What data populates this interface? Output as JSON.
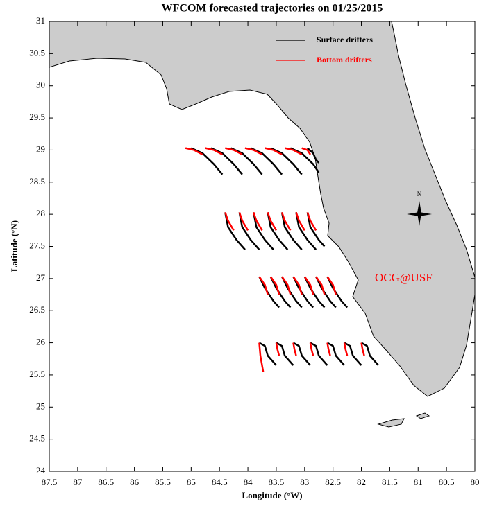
{
  "chart_data": {
    "type": "trajectory",
    "title": "WFCOM forecasted trajectories on 01/25/2015",
    "x_label": "Longitude (°W)",
    "y_label": "Latitude (°N)",
    "annotation": "OCG@USF",
    "compass_label": "N",
    "xlim": [
      87.5,
      80
    ],
    "ylim": [
      24,
      31
    ],
    "xticks": [
      87.5,
      87,
      86.5,
      86,
      85.5,
      85,
      84.5,
      84,
      83.5,
      83,
      82.5,
      82,
      81.5,
      81,
      80.5,
      80
    ],
    "yticks": [
      24,
      24.5,
      25,
      25.5,
      26,
      26.5,
      27,
      27.5,
      28,
      28.5,
      29,
      29.5,
      30,
      30.5,
      31
    ],
    "grid": false,
    "legend": "upper right",
    "series": [
      {
        "name": "Surface drifters",
        "color": "#000000",
        "tracks": [
          {
            "x": [
              85.0,
              84.8,
              84.6,
              84.45
            ],
            "y": [
              29.03,
              28.95,
              28.78,
              28.62
            ]
          },
          {
            "x": [
              84.65,
              84.45,
              84.25,
              84.1
            ],
            "y": [
              29.03,
              28.95,
              28.78,
              28.62
            ]
          },
          {
            "x": [
              84.3,
              84.1,
              83.9,
              83.75
            ],
            "y": [
              29.03,
              28.95,
              28.78,
              28.62
            ]
          },
          {
            "x": [
              83.95,
              83.75,
              83.55,
              83.4
            ],
            "y": [
              29.03,
              28.95,
              28.78,
              28.62
            ]
          },
          {
            "x": [
              83.6,
              83.4,
              83.2,
              83.05
            ],
            "y": [
              29.03,
              28.95,
              28.78,
              28.62
            ]
          },
          {
            "x": [
              83.25,
              83.05,
              82.85,
              82.75
            ],
            "y": [
              29.03,
              28.95,
              28.78,
              28.65
            ]
          },
          {
            "x": [
              82.95,
              82.85,
              82.8,
              82.75
            ],
            "y": [
              29.03,
              28.95,
              28.85,
              28.8
            ]
          },
          {
            "x": [
              84.4,
              84.35,
              84.2,
              84.05
            ],
            "y": [
              28.03,
              27.8,
              27.6,
              27.45
            ]
          },
          {
            "x": [
              84.15,
              84.1,
              83.95,
              83.8
            ],
            "y": [
              28.03,
              27.8,
              27.6,
              27.45
            ]
          },
          {
            "x": [
              83.9,
              83.85,
              83.7,
              83.55
            ],
            "y": [
              28.03,
              27.8,
              27.6,
              27.45
            ]
          },
          {
            "x": [
              83.65,
              83.6,
              83.45,
              83.3
            ],
            "y": [
              28.03,
              27.8,
              27.6,
              27.45
            ]
          },
          {
            "x": [
              83.4,
              83.35,
              83.2,
              83.05
            ],
            "y": [
              28.03,
              27.8,
              27.6,
              27.45
            ]
          },
          {
            "x": [
              83.15,
              83.1,
              82.95,
              82.8
            ],
            "y": [
              28.03,
              27.8,
              27.6,
              27.45
            ]
          },
          {
            "x": [
              82.95,
              82.9,
              82.75,
              82.65
            ],
            "y": [
              28.03,
              27.8,
              27.6,
              27.5
            ]
          },
          {
            "x": [
              83.8,
              83.7,
              83.55,
              83.45
            ],
            "y": [
              27.03,
              26.85,
              26.65,
              26.55
            ]
          },
          {
            "x": [
              83.6,
              83.5,
              83.35,
              83.25
            ],
            "y": [
              27.03,
              26.85,
              26.65,
              26.55
            ]
          },
          {
            "x": [
              83.4,
              83.3,
              83.15,
              83.05
            ],
            "y": [
              27.03,
              26.85,
              26.65,
              26.55
            ]
          },
          {
            "x": [
              83.2,
              83.1,
              82.95,
              82.85
            ],
            "y": [
              27.03,
              26.85,
              26.65,
              26.55
            ]
          },
          {
            "x": [
              83.0,
              82.9,
              82.75,
              82.65
            ],
            "y": [
              27.03,
              26.85,
              26.65,
              26.55
            ]
          },
          {
            "x": [
              82.8,
              82.7,
              82.55,
              82.45
            ],
            "y": [
              27.03,
              26.85,
              26.65,
              26.55
            ]
          },
          {
            "x": [
              82.6,
              82.5,
              82.35,
              82.25
            ],
            "y": [
              27.03,
              26.85,
              26.65,
              26.55
            ]
          },
          {
            "x": [
              83.8,
              83.7,
              83.65,
              83.5
            ],
            "y": [
              26.0,
              25.95,
              25.8,
              25.65
            ]
          },
          {
            "x": [
              83.5,
              83.4,
              83.35,
              83.2
            ],
            "y": [
              26.0,
              25.95,
              25.8,
              25.65
            ]
          },
          {
            "x": [
              83.2,
              83.1,
              83.05,
              82.9
            ],
            "y": [
              26.0,
              25.95,
              25.8,
              25.65
            ]
          },
          {
            "x": [
              82.9,
              82.8,
              82.75,
              82.6
            ],
            "y": [
              26.0,
              25.95,
              25.8,
              25.65
            ]
          },
          {
            "x": [
              82.6,
              82.5,
              82.45,
              82.3
            ],
            "y": [
              26.0,
              25.95,
              25.8,
              25.65
            ]
          },
          {
            "x": [
              82.3,
              82.2,
              82.15,
              82.0
            ],
            "y": [
              26.0,
              25.95,
              25.8,
              25.65
            ]
          },
          {
            "x": [
              82.0,
              81.9,
              81.85,
              81.7
            ],
            "y": [
              26.0,
              25.95,
              25.8,
              25.65
            ]
          }
        ]
      },
      {
        "name": "Bottom drifters",
        "color": "#ff0000",
        "tracks": [
          {
            "x": [
              85.1,
              84.95,
              84.8
            ],
            "y": [
              29.03,
              29.0,
              28.93
            ]
          },
          {
            "x": [
              84.75,
              84.6,
              84.45
            ],
            "y": [
              29.03,
              29.0,
              28.93
            ]
          },
          {
            "x": [
              84.4,
              84.25,
              84.1
            ],
            "y": [
              29.03,
              29.0,
              28.93
            ]
          },
          {
            "x": [
              84.05,
              83.9,
              83.75
            ],
            "y": [
              29.03,
              29.0,
              28.93
            ]
          },
          {
            "x": [
              83.7,
              83.55,
              83.4
            ],
            "y": [
              29.03,
              29.0,
              28.93
            ]
          },
          {
            "x": [
              83.35,
              83.2,
              83.05
            ],
            "y": [
              29.03,
              29.0,
              28.93
            ]
          },
          {
            "x": [
              83.05,
              82.95,
              82.9
            ],
            "y": [
              29.03,
              29.0,
              28.93
            ]
          },
          {
            "x": [
              84.4,
              84.35,
              84.25
            ],
            "y": [
              28.03,
              27.9,
              27.75
            ]
          },
          {
            "x": [
              84.15,
              84.1,
              84.0
            ],
            "y": [
              28.03,
              27.9,
              27.75
            ]
          },
          {
            "x": [
              83.9,
              83.85,
              83.75
            ],
            "y": [
              28.03,
              27.9,
              27.75
            ]
          },
          {
            "x": [
              83.65,
              83.6,
              83.5
            ],
            "y": [
              28.03,
              27.9,
              27.75
            ]
          },
          {
            "x": [
              83.4,
              83.35,
              83.25
            ],
            "y": [
              28.03,
              27.9,
              27.75
            ]
          },
          {
            "x": [
              83.15,
              83.1,
              83.0
            ],
            "y": [
              28.03,
              27.9,
              27.75
            ]
          },
          {
            "x": [
              82.95,
              82.9,
              82.8
            ],
            "y": [
              28.03,
              27.9,
              27.75
            ]
          },
          {
            "x": [
              83.8,
              83.7,
              83.65
            ],
            "y": [
              27.03,
              26.9,
              26.75
            ]
          },
          {
            "x": [
              83.6,
              83.5,
              83.45
            ],
            "y": [
              27.03,
              26.9,
              26.75
            ]
          },
          {
            "x": [
              83.4,
              83.3,
              83.25
            ],
            "y": [
              27.03,
              26.9,
              26.75
            ]
          },
          {
            "x": [
              83.2,
              83.1,
              83.05
            ],
            "y": [
              27.03,
              26.9,
              26.75
            ]
          },
          {
            "x": [
              83.0,
              82.9,
              82.85
            ],
            "y": [
              27.03,
              26.9,
              26.75
            ]
          },
          {
            "x": [
              82.8,
              82.7,
              82.65
            ],
            "y": [
              27.03,
              26.9,
              26.75
            ]
          },
          {
            "x": [
              82.6,
              82.5,
              82.45
            ],
            "y": [
              27.03,
              26.9,
              26.75
            ]
          },
          {
            "x": [
              83.8,
              83.78,
              83.73
            ],
            "y": [
              26.0,
              25.8,
              25.55
            ]
          },
          {
            "x": [
              83.5,
              83.48,
              83.45
            ],
            "y": [
              26.0,
              25.9,
              25.8
            ]
          },
          {
            "x": [
              83.2,
              83.18,
              83.15
            ],
            "y": [
              26.0,
              25.9,
              25.8
            ]
          },
          {
            "x": [
              82.9,
              82.88,
              82.85
            ],
            "y": [
              26.0,
              25.9,
              25.8
            ]
          },
          {
            "x": [
              82.6,
              82.58,
              82.55
            ],
            "y": [
              26.0,
              25.9,
              25.8
            ]
          },
          {
            "x": [
              82.3,
              82.28,
              82.25
            ],
            "y": [
              26.0,
              25.9,
              25.8
            ]
          },
          {
            "x": [
              82.0,
              81.98,
              81.95
            ],
            "y": [
              26.0,
              25.9,
              25.8
            ]
          }
        ]
      }
    ]
  }
}
